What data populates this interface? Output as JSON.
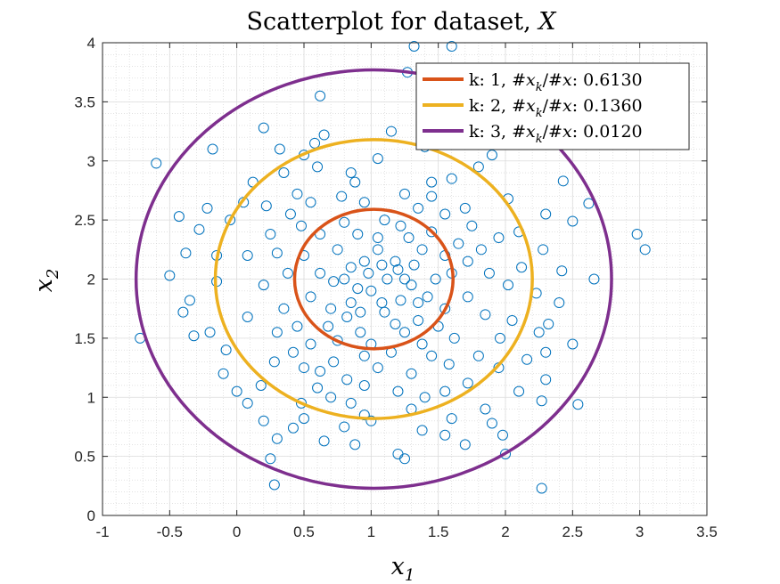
{
  "chart_data": {
    "type": "scatter",
    "title": "Scatterplot for dataset, X",
    "title_main": "Scatterplot for dataset, ",
    "title_var": "X",
    "xlabel": "x1",
    "xlabel_base": "x",
    "xlabel_sub": "1",
    "ylabel": "x2",
    "ylabel_base": "x",
    "ylabel_sub": "2",
    "xlim": [
      -1,
      3.5
    ],
    "ylim": [
      0,
      4
    ],
    "xticks": [
      "-1",
      "-0.5",
      "0",
      "0.5",
      "1",
      "1.5",
      "2",
      "2.5",
      "3",
      "3.5"
    ],
    "yticks": [
      "0",
      "0.5",
      "1",
      "1.5",
      "2",
      "2.5",
      "3",
      "3.5",
      "4"
    ],
    "xtick_values": [
      -1,
      -0.5,
      0,
      0.5,
      1,
      1.5,
      2,
      2.5,
      3,
      3.5
    ],
    "ytick_values": [
      0,
      0.5,
      1,
      1.5,
      2,
      2.5,
      3,
      3.5,
      4
    ],
    "grid": true,
    "minor_grid": true,
    "legend_position": "top-right",
    "point_color": "#0072BD",
    "center": [
      1.02,
      2.0
    ],
    "ellipses": [
      {
        "k": "1",
        "label": "k: 1, #x_k/#x: 0.6130",
        "ratio": "0.6130",
        "rx": 0.59,
        "ry": 0.59,
        "color": "#D95319"
      },
      {
        "k": "2",
        "label": "k: 2, #x_k/#x: 0.1360",
        "ratio": "0.1360",
        "rx": 1.18,
        "ry": 1.18,
        "color": "#EDB120"
      },
      {
        "k": "3",
        "label": "k: 3, #x_k/#x: 0.0120",
        "ratio": "0.0120",
        "rx": 1.77,
        "ry": 1.77,
        "color": "#7E2F8E"
      }
    ],
    "points": [
      [
        1.32,
        3.97
      ],
      [
        1.6,
        3.97
      ],
      [
        -0.72,
        1.5
      ],
      [
        -0.6,
        2.98
      ],
      [
        -0.5,
        2.03
      ],
      [
        -0.43,
        2.53
      ],
      [
        -0.35,
        1.82
      ],
      [
        -0.38,
        2.22
      ],
      [
        -0.18,
        3.1
      ],
      [
        -0.15,
        1.98
      ],
      [
        -0.08,
        1.4
      ],
      [
        0.0,
        1.05
      ],
      [
        0.25,
        0.48
      ],
      [
        0.28,
        0.26
      ],
      [
        0.3,
        0.65
      ],
      [
        2.27,
        0.23
      ],
      [
        2.54,
        0.94
      ],
      [
        2.98,
        2.38
      ],
      [
        3.04,
        2.25
      ],
      [
        2.66,
        2.0
      ],
      [
        2.5,
        1.45
      ],
      [
        2.32,
        1.62
      ],
      [
        2.62,
        2.64
      ],
      [
        2.43,
        2.83
      ],
      [
        2.5,
        2.49
      ],
      [
        2.42,
        2.07
      ],
      [
        2.23,
        1.88
      ],
      [
        2.27,
        0.97
      ],
      [
        2.0,
        0.52
      ],
      [
        1.98,
        0.68
      ],
      [
        1.7,
        0.6
      ],
      [
        1.2,
        0.52
      ],
      [
        1.25,
        0.48
      ],
      [
        0.88,
        0.6
      ],
      [
        0.65,
        0.63
      ],
      [
        0.42,
        0.74
      ],
      [
        2.0,
        3.25
      ],
      [
        1.72,
        3.35
      ],
      [
        1.27,
        3.75
      ],
      [
        0.62,
        3.55
      ],
      [
        0.2,
        3.28
      ],
      [
        0.95,
        0.85
      ],
      [
        0.48,
        0.95
      ],
      [
        0.18,
        1.1
      ],
      [
        1.38,
        0.72
      ],
      [
        1.6,
        0.82
      ],
      [
        1.85,
        0.9
      ],
      [
        2.1,
        1.05
      ],
      [
        2.16,
        1.32
      ],
      [
        2.25,
        1.55
      ],
      [
        2.1,
        2.4
      ],
      [
        1.8,
        2.95
      ],
      [
        1.4,
        3.12
      ],
      [
        0.5,
        3.05
      ],
      [
        0.12,
        2.82
      ],
      [
        -0.05,
        2.5
      ],
      [
        -0.15,
        2.2
      ],
      [
        -0.2,
        1.55
      ],
      [
        0.5,
        0.82
      ],
      [
        0.85,
        0.95
      ],
      [
        0.95,
        1.1
      ],
      [
        1.55,
        1.05
      ],
      [
        1.95,
        1.25
      ],
      [
        2.05,
        1.65
      ],
      [
        2.12,
        2.1
      ],
      [
        2.02,
        2.68
      ],
      [
        1.6,
        2.85
      ],
      [
        1.05,
        3.02
      ],
      [
        0.6,
        2.95
      ],
      [
        0.22,
        2.62
      ],
      [
        0.08,
        2.2
      ],
      [
        0.08,
        1.68
      ],
      [
        0.28,
        1.3
      ],
      [
        0.6,
        1.08
      ],
      [
        1.3,
        0.9
      ],
      [
        1.72,
        1.12
      ],
      [
        1.96,
        1.5
      ],
      [
        2.02,
        1.95
      ],
      [
        1.95,
        2.35
      ],
      [
        1.7,
        2.6
      ],
      [
        1.45,
        2.82
      ],
      [
        0.85,
        2.9
      ],
      [
        0.45,
        2.72
      ],
      [
        0.25,
        2.38
      ],
      [
        0.2,
        1.95
      ],
      [
        0.3,
        1.55
      ],
      [
        0.5,
        1.25
      ],
      [
        0.82,
        1.15
      ],
      [
        1.2,
        1.05
      ],
      [
        1.58,
        1.28
      ],
      [
        1.85,
        1.7
      ],
      [
        1.82,
        2.25
      ],
      [
        1.55,
        2.55
      ],
      [
        1.25,
        2.72
      ],
      [
        0.78,
        2.7
      ],
      [
        0.48,
        2.45
      ],
      [
        0.38,
        2.05
      ],
      [
        0.45,
        1.6
      ],
      [
        0.72,
        1.3
      ],
      [
        1.05,
        1.25
      ],
      [
        1.45,
        1.35
      ],
      [
        1.72,
        1.85
      ],
      [
        1.65,
        2.3
      ],
      [
        1.35,
        2.6
      ],
      [
        0.95,
        2.65
      ],
      [
        0.62,
        2.38
      ],
      [
        0.55,
        1.85
      ],
      [
        0.75,
        1.48
      ],
      [
        1.15,
        1.38
      ],
      [
        1.5,
        1.6
      ],
      [
        1.6,
        2.05
      ],
      [
        1.45,
        2.4
      ],
      [
        1.1,
        2.5
      ],
      [
        0.75,
        2.25
      ],
      [
        0.7,
        1.75
      ],
      [
        0.92,
        1.55
      ],
      [
        1.25,
        1.55
      ],
      [
        1.42,
        1.85
      ],
      [
        1.38,
        2.25
      ],
      [
        1.05,
        2.35
      ],
      [
        0.85,
        2.1
      ],
      [
        0.85,
        1.8
      ],
      [
        1.1,
        1.72
      ],
      [
        1.3,
        1.95
      ],
      [
        1.18,
        2.15
      ],
      [
        0.98,
        2.05
      ],
      [
        1.0,
        1.9
      ],
      [
        1.12,
        2.0
      ],
      [
        0.65,
        3.22
      ],
      [
        0.35,
        2.9
      ],
      [
        -0.22,
        2.6
      ],
      [
        -0.4,
        1.72
      ],
      [
        -0.1,
        1.2
      ],
      [
        0.2,
        0.8
      ],
      [
        0.8,
        0.75
      ],
      [
        1.55,
        0.68
      ],
      [
        2.3,
        1.15
      ],
      [
        2.4,
        1.8
      ],
      [
        2.3,
        2.55
      ],
      [
        1.9,
        3.05
      ],
      [
        1.15,
        3.25
      ],
      [
        0.32,
        3.1
      ],
      [
        -0.28,
        2.42
      ],
      [
        -0.32,
        1.52
      ],
      [
        0.08,
        0.95
      ],
      [
        1.0,
        0.8
      ],
      [
        1.9,
        0.78
      ],
      [
        2.3,
        1.38
      ],
      [
        2.28,
        2.25
      ],
      [
        1.62,
        3.15
      ],
      [
        0.58,
        3.15
      ],
      [
        0.05,
        2.65
      ],
      [
        0.4,
        2.55
      ],
      [
        0.3,
        2.22
      ],
      [
        0.42,
        1.38
      ],
      [
        0.7,
        1.0
      ],
      [
        1.4,
        1.0
      ],
      [
        1.8,
        1.35
      ],
      [
        1.88,
        2.05
      ],
      [
        1.75,
        2.45
      ],
      [
        0.55,
        2.65
      ],
      [
        0.35,
        1.75
      ],
      [
        0.62,
        1.22
      ],
      [
        1.3,
        1.2
      ],
      [
        1.62,
        1.5
      ],
      [
        1.72,
        2.15
      ],
      [
        1.45,
        2.7
      ],
      [
        0.88,
        2.82
      ],
      [
        0.5,
        2.2
      ],
      [
        0.55,
        1.45
      ],
      [
        0.95,
        1.35
      ],
      [
        1.38,
        1.45
      ],
      [
        1.55,
        1.75
      ],
      [
        1.55,
        2.2
      ],
      [
        1.22,
        2.45
      ],
      [
        0.8,
        2.48
      ],
      [
        0.62,
        2.05
      ],
      [
        0.68,
        1.6
      ],
      [
        1.0,
        1.45
      ],
      [
        1.35,
        1.65
      ],
      [
        1.48,
        2.0
      ],
      [
        1.28,
        2.35
      ],
      [
        0.9,
        2.38
      ],
      [
        0.72,
        1.98
      ],
      [
        0.82,
        1.68
      ],
      [
        1.18,
        1.62
      ],
      [
        1.35,
        1.8
      ],
      [
        1.32,
        2.12
      ],
      [
        1.05,
        2.25
      ],
      [
        0.8,
        2.0
      ],
      [
        0.92,
        1.72
      ],
      [
        1.22,
        1.82
      ],
      [
        1.2,
        2.08
      ],
      [
        0.95,
        2.15
      ],
      [
        0.9,
        1.92
      ],
      [
        1.08,
        1.8
      ],
      [
        1.25,
        2.0
      ],
      [
        1.08,
        2.12
      ]
    ]
  }
}
